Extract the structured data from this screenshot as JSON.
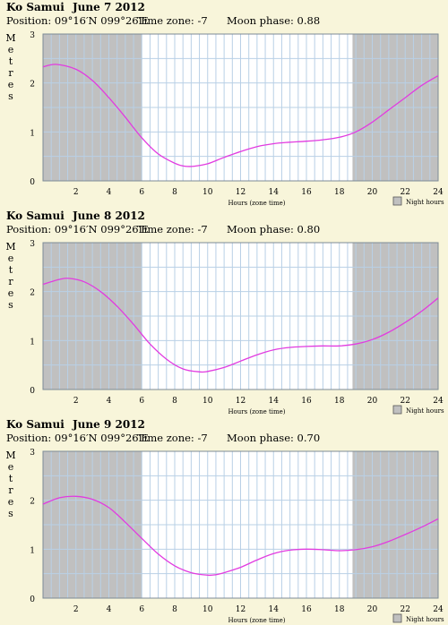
{
  "ylabel": "Metres",
  "xlabel": "Hours (zone time)",
  "legend_label": "Night hours",
  "colors": {
    "background": "#f8f5da",
    "plot": "#ffffff",
    "night": "#c0c0c0",
    "grid": "#b9d0e6",
    "curve": "#e23be0"
  },
  "chart_data": [
    {
      "type": "line",
      "place": "Ko Samui",
      "date": "June 7 2012",
      "position": "Position: 09°16′N 099°26′E",
      "timezone": "Time zone: -7",
      "moonphase": "Moon phase: 0.88",
      "xlim": [
        0,
        24
      ],
      "ylim": [
        0,
        3
      ],
      "xticks": [
        2,
        4,
        6,
        8,
        10,
        12,
        14,
        16,
        18,
        20,
        22,
        24
      ],
      "yticks": [
        0,
        1,
        2,
        3
      ],
      "night": [
        [
          0,
          6
        ],
        [
          18.8,
          24
        ]
      ],
      "x": [
        0,
        0.8,
        2,
        3,
        4,
        5,
        6,
        7,
        8,
        8.6,
        9.2,
        10,
        11,
        12,
        13,
        14,
        15,
        16,
        17,
        18,
        19,
        20,
        21,
        22,
        23,
        24
      ],
      "y": [
        2.33,
        2.38,
        2.28,
        2.05,
        1.7,
        1.3,
        0.88,
        0.55,
        0.36,
        0.3,
        0.3,
        0.35,
        0.48,
        0.6,
        0.7,
        0.76,
        0.79,
        0.81,
        0.84,
        0.89,
        1.0,
        1.2,
        1.45,
        1.7,
        1.95,
        2.15
      ]
    },
    {
      "type": "line",
      "place": "Ko Samui",
      "date": "June 8 2012",
      "position": "Position: 09°16′N 099°26′E",
      "timezone": "Time zone: -7",
      "moonphase": "Moon phase: 0.80",
      "xlim": [
        0,
        24
      ],
      "ylim": [
        0,
        3
      ],
      "xticks": [
        2,
        4,
        6,
        8,
        10,
        12,
        14,
        16,
        18,
        20,
        22,
        24
      ],
      "yticks": [
        0,
        1,
        2,
        3
      ],
      "night": [
        [
          0,
          6
        ],
        [
          18.8,
          24
        ]
      ],
      "x": [
        0,
        1,
        1.6,
        2.5,
        3.5,
        4.5,
        5.5,
        6.5,
        7.5,
        8.5,
        9.5,
        10,
        11,
        12,
        13,
        14,
        15,
        16,
        17,
        18,
        19,
        20,
        21,
        22,
        23,
        24
      ],
      "y": [
        2.15,
        2.25,
        2.27,
        2.2,
        2.0,
        1.7,
        1.33,
        0.93,
        0.62,
        0.42,
        0.36,
        0.37,
        0.45,
        0.58,
        0.71,
        0.81,
        0.86,
        0.88,
        0.89,
        0.89,
        0.93,
        1.02,
        1.17,
        1.37,
        1.6,
        1.87
      ]
    },
    {
      "type": "line",
      "place": "Ko Samui",
      "date": "June 9 2012",
      "position": "Position: 09°16′N 099°26′E",
      "timezone": "Time zone: -7",
      "moonphase": "Moon phase: 0.70",
      "xlim": [
        0,
        24
      ],
      "ylim": [
        0,
        3
      ],
      "xticks": [
        2,
        4,
        6,
        8,
        10,
        12,
        14,
        16,
        18,
        20,
        22,
        24
      ],
      "yticks": [
        0,
        1,
        2,
        3
      ],
      "night": [
        [
          0,
          6
        ],
        [
          18.8,
          24
        ]
      ],
      "x": [
        0,
        1,
        2,
        3,
        4,
        5,
        6,
        7,
        8,
        9,
        10,
        10.5,
        11,
        12,
        13,
        14,
        15,
        16,
        17,
        18,
        19,
        20,
        21,
        22,
        23,
        24
      ],
      "y": [
        1.92,
        2.05,
        2.08,
        2.02,
        1.85,
        1.55,
        1.22,
        0.9,
        0.66,
        0.52,
        0.47,
        0.48,
        0.52,
        0.63,
        0.78,
        0.91,
        0.98,
        1.0,
        0.99,
        0.97,
        0.99,
        1.05,
        1.16,
        1.3,
        1.45,
        1.62
      ]
    }
  ]
}
